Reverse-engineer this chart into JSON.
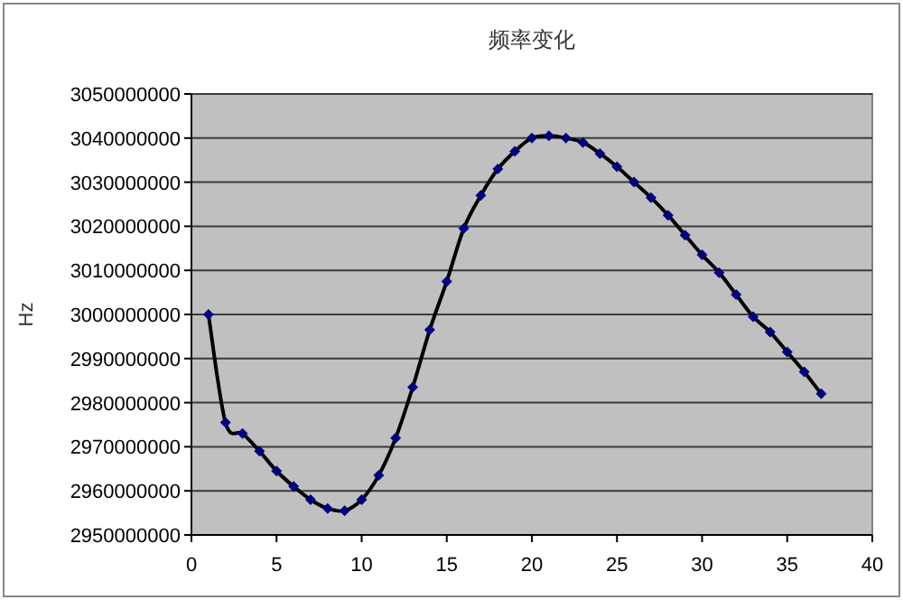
{
  "chart_data": {
    "type": "line",
    "title": "频率变化",
    "ylabel": "Hz",
    "x": [
      1,
      2,
      3,
      4,
      5,
      6,
      7,
      8,
      9,
      10,
      11,
      12,
      13,
      14,
      15,
      16,
      17,
      18,
      19,
      20,
      21,
      22,
      23,
      24,
      25,
      26,
      27,
      28,
      29,
      30,
      31,
      32,
      33,
      34,
      35,
      36,
      37
    ],
    "series": [
      {
        "color": "#000000",
        "values": [
          3000000000,
          2975500000,
          2973000000,
          2969000000,
          2964500000,
          2961000000,
          2958000000,
          2956000000,
          2955500000,
          2958000000,
          2963500000,
          2972000000,
          2983500000,
          2996500000,
          3007500000,
          3019500000,
          3027000000,
          3033000000,
          3037000000,
          3040000000,
          3040500000,
          3040000000,
          3039000000,
          3036500000,
          3033500000,
          3030000000,
          3026500000,
          3022500000,
          3018000000,
          3013500000,
          3009500000,
          3004500000,
          2999500000,
          2996000000,
          2991500000,
          2987000000,
          2982000000
        ]
      }
    ],
    "xlim": [
      0,
      40
    ],
    "ylim": [
      2950000000,
      3050000000
    ],
    "xticks": [
      0,
      5,
      10,
      15,
      20,
      25,
      30,
      35,
      40
    ],
    "yticks": [
      2950000000,
      2960000000,
      2970000000,
      2980000000,
      2990000000,
      3000000000,
      3010000000,
      3020000000,
      3030000000,
      3040000000,
      3050000000
    ],
    "grid": "y",
    "marker": "diamond",
    "line_style": "solid"
  }
}
